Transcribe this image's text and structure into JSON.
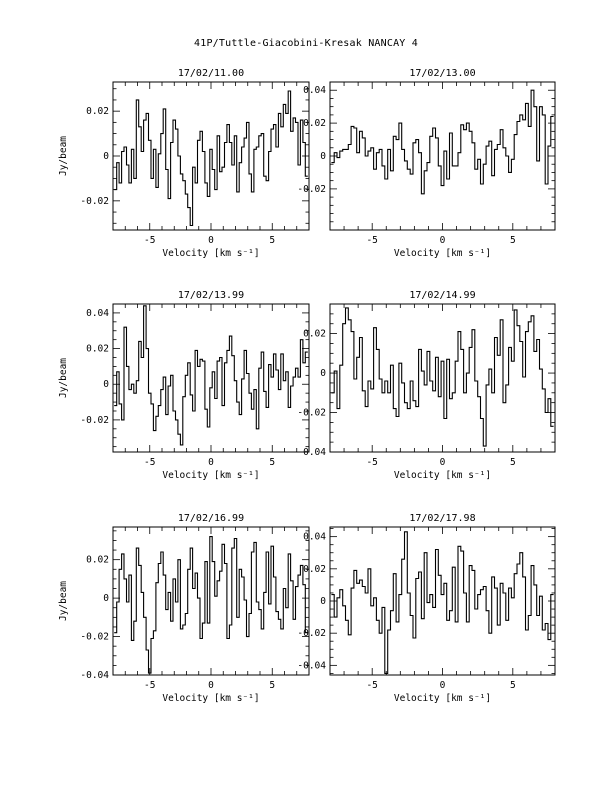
{
  "page": {
    "title": "41P/Tuttle-Giacobini-Kresak    NANCAY      4"
  },
  "chart_data": [
    {
      "type": "line",
      "title": "17/02/11.00",
      "xlabel": "Velocity [km s⁻¹]",
      "ylabel": "Jy/beam",
      "xlim": [
        -8,
        8
      ],
      "ylim": [
        -0.033,
        0.033
      ],
      "xticks": [
        -5,
        0,
        5
      ],
      "yticks": [
        -0.02,
        0,
        0.02
      ],
      "ytick_labels": [
        "-0.02",
        "0",
        "0.02"
      ],
      "x": [
        -7.8,
        -7.6,
        -7.4,
        -7.2,
        -7.0,
        -6.8,
        -6.6,
        -6.4,
        -6.2,
        -6.0,
        -5.8,
        -5.6,
        -5.4,
        -5.2,
        -5.0,
        -4.8,
        -4.6,
        -4.4,
        -4.2,
        -4.0,
        -3.8,
        -3.6,
        -3.4,
        -3.2,
        -3.0,
        -2.8,
        -2.6,
        -2.4,
        -2.2,
        -2.0,
        -1.8,
        -1.6,
        -1.4,
        -1.2,
        -1.0,
        -0.8,
        -0.6,
        -0.4,
        -0.2,
        0.0,
        0.2,
        0.4,
        0.6,
        0.8,
        1.0,
        1.2,
        1.4,
        1.6,
        1.8,
        2.0,
        2.2,
        2.4,
        2.6,
        2.8,
        3.0,
        3.2,
        3.4,
        3.6,
        3.8,
        4.0,
        4.2,
        4.4,
        4.6,
        4.8,
        5.0,
        5.2,
        5.4,
        5.6,
        5.8,
        6.0,
        6.2,
        6.4,
        6.6,
        6.8,
        7.0,
        7.2,
        7.4,
        7.6,
        7.8
      ],
      "y": [
        -0.015,
        -0.003,
        -0.012,
        0.002,
        0.004,
        -0.004,
        -0.012,
        0.003,
        -0.01,
        0.025,
        0.013,
        0.002,
        0.016,
        0.019,
        0.007,
        -0.01,
        0.003,
        -0.014,
        0.001,
        0.01,
        0.021,
        -0.006,
        -0.019,
        0.006,
        0.016,
        0.012,
        0.0,
        -0.008,
        -0.011,
        -0.017,
        -0.023,
        -0.031,
        -0.005,
        -0.012,
        0.007,
        0.011,
        0.002,
        -0.012,
        -0.018,
        0.003,
        -0.006,
        -0.015,
        0.009,
        -0.007,
        -0.005,
        0.006,
        0.014,
        0.006,
        -0.004,
        0.009,
        -0.016,
        -0.003,
        0.004,
        0.008,
        0.015,
        -0.008,
        -0.016,
        0.003,
        0.004,
        0.009,
        0.01,
        -0.009,
        -0.011,
        0.002,
        0.012,
        0.014,
        0.004,
        0.019,
        0.013,
        0.023,
        0.019,
        0.029,
        0.011,
        0.017,
        0.015,
        -0.004,
        0.016,
        0.006,
        -0.009
      ]
    },
    {
      "type": "line",
      "title": "17/02/13.00",
      "xlabel": "Velocity [km s⁻¹]",
      "ylabel": "",
      "xlim": [
        -8,
        8
      ],
      "ylim": [
        -0.045,
        0.045
      ],
      "xticks": [
        -5,
        0,
        5
      ],
      "yticks": [
        -0.02,
        0,
        0.02,
        0.04
      ],
      "ytick_labels": [
        "-0.02",
        "0",
        "0.02",
        "0.04"
      ],
      "x": [
        -7.8,
        -7.6,
        -7.4,
        -7.2,
        -7.0,
        -6.8,
        -6.6,
        -6.4,
        -6.2,
        -6.0,
        -5.8,
        -5.6,
        -5.4,
        -5.2,
        -5.0,
        -4.8,
        -4.6,
        -4.4,
        -4.2,
        -4.0,
        -3.8,
        -3.6,
        -3.4,
        -3.2,
        -3.0,
        -2.8,
        -2.6,
        -2.4,
        -2.2,
        -2.0,
        -1.8,
        -1.6,
        -1.4,
        -1.2,
        -1.0,
        -0.8,
        -0.6,
        -0.4,
        -0.2,
        0.0,
        0.2,
        0.4,
        0.6,
        0.8,
        1.0,
        1.2,
        1.4,
        1.6,
        1.8,
        2.0,
        2.2,
        2.4,
        2.6,
        2.8,
        3.0,
        3.2,
        3.4,
        3.6,
        3.8,
        4.0,
        4.2,
        4.4,
        4.6,
        4.8,
        5.0,
        5.2,
        5.4,
        5.6,
        5.8,
        6.0,
        6.2,
        6.4,
        6.6,
        6.8,
        7.0,
        7.2,
        7.4,
        7.6,
        7.8
      ],
      "y": [
        -0.004,
        0.002,
        -0.001,
        0.003,
        0.004,
        0.004,
        0.007,
        0.018,
        0.017,
        0.002,
        0.015,
        0.011,
        0.0,
        0.003,
        0.005,
        -0.008,
        0.002,
        0.004,
        -0.006,
        -0.014,
        0.004,
        -0.009,
        0.012,
        0.01,
        0.02,
        0.004,
        -0.003,
        -0.008,
        -0.011,
        0.008,
        0.01,
        0.002,
        -0.023,
        -0.009,
        -0.004,
        0.012,
        0.017,
        0.011,
        -0.006,
        -0.018,
        0.003,
        -0.014,
        0.014,
        -0.006,
        -0.006,
        0.002,
        0.019,
        0.016,
        0.02,
        0.015,
        0.008,
        -0.008,
        -0.002,
        -0.017,
        -0.005,
        0.006,
        0.009,
        -0.012,
        0.004,
        0.007,
        0.016,
        0.005,
        0.0,
        -0.01,
        -0.002,
        0.013,
        0.021,
        0.025,
        0.022,
        0.032,
        0.018,
        0.04,
        0.03,
        -0.003,
        0.03,
        0.025,
        -0.017,
        0.006,
        0.024
      ]
    },
    {
      "type": "line",
      "title": "17/02/13.99",
      "xlabel": "Velocity [km s⁻¹]",
      "ylabel": "Jy/beam",
      "xlim": [
        -8,
        8
      ],
      "ylim": [
        -0.038,
        0.045
      ],
      "xticks": [
        -5,
        0,
        5
      ],
      "yticks": [
        -0.02,
        0,
        0.02,
        0.04
      ],
      "ytick_labels": [
        "-0.02",
        "0",
        "0.02",
        "0.04"
      ],
      "x": [
        -7.8,
        -7.6,
        -7.4,
        -7.2,
        -7.0,
        -6.8,
        -6.6,
        -6.4,
        -6.2,
        -6.0,
        -5.8,
        -5.6,
        -5.4,
        -5.2,
        -5.0,
        -4.8,
        -4.6,
        -4.4,
        -4.2,
        -4.0,
        -3.8,
        -3.6,
        -3.4,
        -3.2,
        -3.0,
        -2.8,
        -2.6,
        -2.4,
        -2.2,
        -2.0,
        -1.8,
        -1.6,
        -1.4,
        -1.2,
        -1.0,
        -0.8,
        -0.6,
        -0.4,
        -0.2,
        0.0,
        0.2,
        0.4,
        0.6,
        0.8,
        1.0,
        1.2,
        1.4,
        1.6,
        1.8,
        2.0,
        2.2,
        2.4,
        2.6,
        2.8,
        3.0,
        3.2,
        3.4,
        3.6,
        3.8,
        4.0,
        4.2,
        4.4,
        4.6,
        4.8,
        5.0,
        5.2,
        5.4,
        5.6,
        5.8,
        6.0,
        6.2,
        6.4,
        6.6,
        6.8,
        7.0,
        7.2,
        7.4,
        7.6,
        7.8
      ],
      "y": [
        -0.012,
        0.007,
        -0.011,
        -0.02,
        0.032,
        0.01,
        -0.003,
        0.0,
        -0.005,
        0.002,
        0.024,
        0.015,
        0.044,
        0.02,
        -0.005,
        -0.011,
        -0.026,
        -0.018,
        -0.012,
        -0.003,
        0.004,
        -0.017,
        -0.001,
        0.005,
        -0.015,
        -0.02,
        -0.028,
        -0.034,
        -0.007,
        0.005,
        0.012,
        -0.006,
        -0.015,
        0.019,
        0.01,
        0.014,
        0.013,
        -0.014,
        -0.024,
        -0.002,
        0.007,
        -0.008,
        0.013,
        0.015,
        -0.012,
        0.012,
        0.019,
        0.027,
        0.016,
        0.002,
        -0.01,
        -0.017,
        0.003,
        0.019,
        0.006,
        -0.005,
        -0.014,
        -0.003,
        -0.025,
        0.009,
        0.018,
        -0.004,
        -0.013,
        0.011,
        0.004,
        0.017,
        0.008,
        -0.003,
        0.017,
        0.002,
        0.007,
        -0.013,
        -0.001,
        0.004,
        0.009,
        0.004,
        0.025,
        0.012,
        0.018
      ]
    },
    {
      "type": "line",
      "title": "17/02/14.99",
      "xlabel": "Velocity [km s⁻¹]",
      "ylabel": "",
      "xlim": [
        -8,
        8
      ],
      "ylim": [
        -0.04,
        0.035
      ],
      "xticks": [
        -5,
        0,
        5
      ],
      "yticks": [
        -0.04,
        -0.02,
        0,
        0.02
      ],
      "ytick_labels": [
        "-0.04",
        "-0.02",
        "0",
        "0.02"
      ],
      "x": [
        -7.8,
        -7.6,
        -7.4,
        -7.2,
        -7.0,
        -6.8,
        -6.6,
        -6.4,
        -6.2,
        -6.0,
        -5.8,
        -5.6,
        -5.4,
        -5.2,
        -5.0,
        -4.8,
        -4.6,
        -4.4,
        -4.2,
        -4.0,
        -3.8,
        -3.6,
        -3.4,
        -3.2,
        -3.0,
        -2.8,
        -2.6,
        -2.4,
        -2.2,
        -2.0,
        -1.8,
        -1.6,
        -1.4,
        -1.2,
        -1.0,
        -0.8,
        -0.6,
        -0.4,
        -0.2,
        0.0,
        0.2,
        0.4,
        0.6,
        0.8,
        1.0,
        1.2,
        1.4,
        1.6,
        1.8,
        2.0,
        2.2,
        2.4,
        2.6,
        2.8,
        3.0,
        3.2,
        3.4,
        3.6,
        3.8,
        4.0,
        4.2,
        4.4,
        4.6,
        4.8,
        5.0,
        5.2,
        5.4,
        5.6,
        5.8,
        6.0,
        6.2,
        6.4,
        6.6,
        6.8,
        7.0,
        7.2,
        7.4,
        7.6,
        7.8
      ],
      "y": [
        -0.01,
        0.001,
        -0.018,
        0.004,
        0.025,
        0.033,
        0.027,
        0.021,
        -0.003,
        0.008,
        0.018,
        -0.009,
        -0.017,
        -0.004,
        -0.008,
        0.023,
        0.012,
        -0.003,
        -0.01,
        -0.004,
        -0.01,
        0.004,
        -0.018,
        -0.022,
        0.005,
        -0.005,
        -0.015,
        -0.018,
        -0.004,
        -0.014,
        -0.017,
        0.012,
        0.001,
        -0.006,
        0.011,
        -0.004,
        -0.009,
        0.008,
        -0.012,
        0.006,
        -0.023,
        0.007,
        -0.013,
        -0.01,
        0.006,
        0.021,
        0.012,
        -0.01,
        0.0,
        0.013,
        0.022,
        -0.004,
        -0.012,
        -0.023,
        -0.037,
        -0.006,
        0.002,
        -0.01,
        0.018,
        0.009,
        0.027,
        -0.015,
        -0.006,
        0.013,
        0.006,
        0.032,
        0.024,
        0.016,
        -0.002,
        0.021,
        0.026,
        0.029,
        0.011,
        0.017,
        0.002,
        -0.008,
        -0.02,
        -0.013,
        -0.027
      ]
    },
    {
      "type": "line",
      "title": "17/02/16.99",
      "xlabel": "Velocity [km s⁻¹]",
      "ylabel": "Jy/beam",
      "xlim": [
        -8,
        8
      ],
      "ylim": [
        -0.04,
        0.037
      ],
      "xticks": [
        -5,
        0,
        5
      ],
      "yticks": [
        -0.04,
        -0.02,
        0,
        0.02
      ],
      "ytick_labels": [
        "-0.04",
        "-0.02",
        "0",
        "0.02"
      ],
      "x": [
        -7.8,
        -7.6,
        -7.4,
        -7.2,
        -7.0,
        -6.8,
        -6.6,
        -6.4,
        -6.2,
        -6.0,
        -5.8,
        -5.6,
        -5.4,
        -5.2,
        -5.0,
        -4.8,
        -4.6,
        -4.4,
        -4.2,
        -4.0,
        -3.8,
        -3.6,
        -3.4,
        -3.2,
        -3.0,
        -2.8,
        -2.6,
        -2.4,
        -2.2,
        -2.0,
        -1.8,
        -1.6,
        -1.4,
        -1.2,
        -1.0,
        -0.8,
        -0.6,
        -0.4,
        -0.2,
        0.0,
        0.2,
        0.4,
        0.6,
        0.8,
        1.0,
        1.2,
        1.4,
        1.6,
        1.8,
        2.0,
        2.2,
        2.4,
        2.6,
        2.8,
        3.0,
        3.2,
        3.4,
        3.6,
        3.8,
        4.0,
        4.2,
        4.4,
        4.6,
        4.8,
        5.0,
        5.2,
        5.4,
        5.6,
        5.8,
        6.0,
        6.2,
        6.4,
        6.6,
        6.8,
        7.0,
        7.2,
        7.4,
        7.6,
        7.8
      ],
      "y": [
        -0.018,
        -0.002,
        0.015,
        0.023,
        0.01,
        -0.002,
        0.012,
        -0.022,
        -0.012,
        0.026,
        0.017,
        0.003,
        -0.01,
        -0.027,
        -0.039,
        -0.021,
        -0.017,
        0.008,
        0.018,
        0.024,
        0.012,
        -0.006,
        0.003,
        -0.012,
        0.01,
        -0.002,
        0.02,
        -0.016,
        -0.014,
        -0.008,
        0.015,
        0.026,
        0.005,
        0.013,
        0.0,
        -0.021,
        -0.013,
        0.019,
        -0.013,
        0.032,
        0.019,
        0.001,
        0.009,
        0.014,
        0.028,
        0.018,
        -0.021,
        -0.014,
        0.026,
        0.031,
        -0.01,
        0.015,
        0.011,
        -0.001,
        -0.02,
        -0.008,
        0.024,
        0.029,
        -0.002,
        -0.006,
        -0.016,
        0.003,
        0.024,
        -0.003,
        0.027,
        0.011,
        -0.007,
        -0.011,
        -0.016,
        0.005,
        -0.005,
        0.023,
        0.009,
        -0.011,
        0.006,
        0.012,
        0.017,
        0.007,
        -0.018
      ]
    },
    {
      "type": "line",
      "title": "17/02/17.98",
      "xlabel": "Velocity [km s⁻¹]",
      "ylabel": "",
      "xlim": [
        -8,
        8
      ],
      "ylim": [
        -0.046,
        0.046
      ],
      "xticks": [
        -5,
        0,
        5
      ],
      "yticks": [
        -0.04,
        -0.02,
        0,
        0.02,
        0.04
      ],
      "ytick_labels": [
        "-0.04",
        "-0.02",
        "0",
        "0.02",
        "0.04"
      ],
      "x": [
        -7.8,
        -7.6,
        -7.4,
        -7.2,
        -7.0,
        -6.8,
        -6.6,
        -6.4,
        -6.2,
        -6.0,
        -5.8,
        -5.6,
        -5.4,
        -5.2,
        -5.0,
        -4.8,
        -4.6,
        -4.4,
        -4.2,
        -4.0,
        -3.8,
        -3.6,
        -3.4,
        -3.2,
        -3.0,
        -2.8,
        -2.6,
        -2.4,
        -2.2,
        -2.0,
        -1.8,
        -1.6,
        -1.4,
        -1.2,
        -1.0,
        -0.8,
        -0.6,
        -0.4,
        -0.2,
        0.0,
        0.2,
        0.4,
        0.6,
        0.8,
        1.0,
        1.2,
        1.4,
        1.6,
        1.8,
        2.0,
        2.2,
        2.4,
        2.6,
        2.8,
        3.0,
        3.2,
        3.4,
        3.6,
        3.8,
        4.0,
        4.2,
        4.4,
        4.6,
        4.8,
        5.0,
        5.2,
        5.4,
        5.6,
        5.8,
        6.0,
        6.2,
        6.4,
        6.6,
        6.8,
        7.0,
        7.2,
        7.4,
        7.6,
        7.8
      ],
      "y": [
        0.004,
        -0.01,
        0.002,
        0.007,
        -0.003,
        -0.012,
        -0.021,
        0.008,
        0.019,
        0.011,
        0.013,
        0.009,
        0.005,
        0.02,
        -0.003,
        0.002,
        -0.012,
        -0.02,
        -0.004,
        -0.045,
        -0.018,
        -0.006,
        0.017,
        -0.013,
        0.004,
        0.026,
        0.043,
        0.005,
        -0.009,
        -0.023,
        0.014,
        0.018,
        -0.011,
        0.03,
        -0.001,
        0.004,
        -0.004,
        0.032,
        0.016,
        0.004,
        0.011,
        -0.012,
        -0.006,
        0.021,
        -0.013,
        0.034,
        0.031,
        0.005,
        -0.013,
        0.022,
        0.019,
        -0.005,
        0.004,
        0.007,
        0.009,
        -0.006,
        -0.02,
        0.015,
        0.008,
        -0.015,
        0.011,
        0.005,
        -0.012,
        0.008,
        0.002,
        0.017,
        0.023,
        0.03,
        0.015,
        -0.018,
        -0.009,
        0.022,
        0.01,
        -0.009,
        0.003,
        -0.018,
        -0.014,
        -0.024,
        0.004
      ]
    }
  ]
}
